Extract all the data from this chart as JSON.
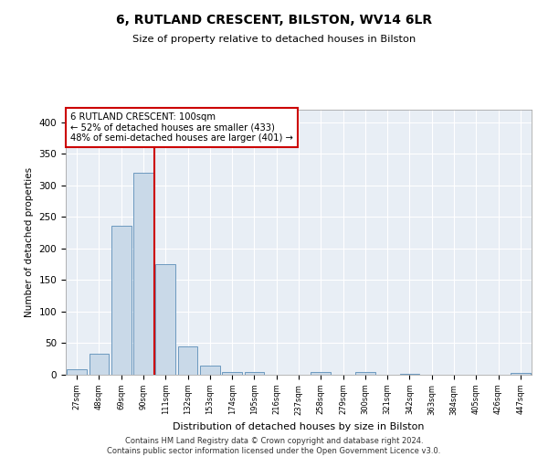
{
  "title": "6, RUTLAND CRESCENT, BILSTON, WV14 6LR",
  "subtitle": "Size of property relative to detached houses in Bilston",
  "xlabel": "Distribution of detached houses by size in Bilston",
  "ylabel": "Number of detached properties",
  "bar_labels": [
    "27sqm",
    "48sqm",
    "69sqm",
    "90sqm",
    "111sqm",
    "132sqm",
    "153sqm",
    "174sqm",
    "195sqm",
    "216sqm",
    "237sqm",
    "258sqm",
    "279sqm",
    "300sqm",
    "321sqm",
    "342sqm",
    "363sqm",
    "384sqm",
    "405sqm",
    "426sqm",
    "447sqm"
  ],
  "bar_values": [
    8,
    33,
    236,
    320,
    175,
    45,
    15,
    5,
    5,
    0,
    0,
    5,
    0,
    5,
    0,
    2,
    0,
    0,
    0,
    0,
    3
  ],
  "bar_color": "#c9d9e8",
  "bar_edgecolor": "#5b8db8",
  "background_color": "#e8eef5",
  "grid_color": "#ffffff",
  "vline_x": 3.5,
  "vline_color": "#cc0000",
  "annotation_box_text": "6 RUTLAND CRESCENT: 100sqm\n← 52% of detached houses are smaller (433)\n48% of semi-detached houses are larger (401) →",
  "annotation_box_color": "#cc0000",
  "ylim": [
    0,
    420
  ],
  "yticks": [
    0,
    50,
    100,
    150,
    200,
    250,
    300,
    350,
    400
  ],
  "footer_line1": "Contains HM Land Registry data © Crown copyright and database right 2024.",
  "footer_line2": "Contains public sector information licensed under the Open Government Licence v3.0."
}
